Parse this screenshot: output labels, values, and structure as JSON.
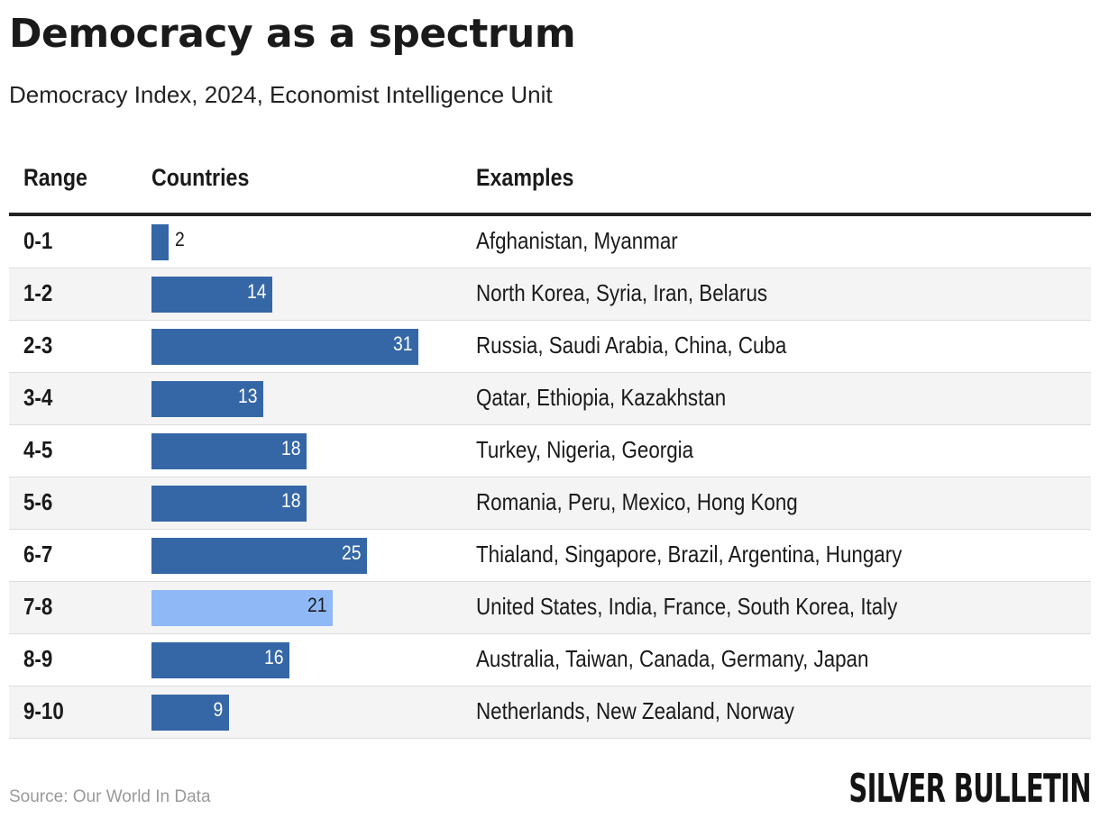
{
  "title": "Democracy as a spectrum",
  "subtitle": "Democracy Index, 2024, Economist Intelligence Unit",
  "columns": {
    "range": "Range",
    "countries": "Countries",
    "examples": "Examples"
  },
  "source": "Source: Our World In Data",
  "brand": "SILVER BULLETIN",
  "colors": {
    "bar": "#3567a7",
    "highlight": "#8fb8f7"
  },
  "chart_data": {
    "type": "bar",
    "orientation": "horizontal",
    "title": "Democracy as a spectrum",
    "subtitle": "Democracy Index, 2024, Economist Intelligence Unit",
    "categories": [
      "0-1",
      "1-2",
      "2-3",
      "3-4",
      "4-5",
      "5-6",
      "6-7",
      "7-8",
      "8-9",
      "9-10"
    ],
    "values": [
      2,
      14,
      31,
      13,
      18,
      18,
      25,
      21,
      16,
      9
    ],
    "examples": [
      "Afghanistan, Myanmar",
      "North Korea, Syria, Iran, Belarus",
      "Russia, Saudi Arabia, China, Cuba",
      "Qatar, Ethiopia, Kazakhstan",
      "Turkey, Nigeria, Georgia",
      "Romania, Peru, Mexico, Hong Kong",
      "Thialand, Singapore, Brazil, Argentina, Hungary",
      "United States, India, France, South Korea, Italy",
      "Australia, Taiwan, Canada, Germany, Japan",
      "Netherlands, New Zealand, Norway"
    ],
    "highlighted_category": "7-8",
    "xlim": [
      0,
      31
    ],
    "xlabel": "Countries",
    "ylabel": "Range"
  }
}
